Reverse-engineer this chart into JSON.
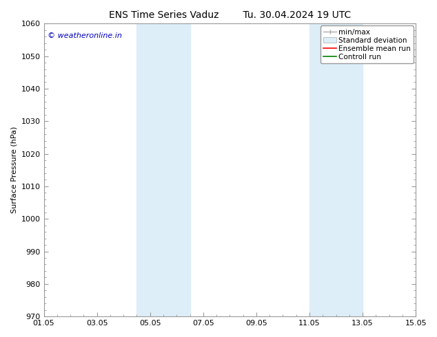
{
  "title_left": "ENS Time Series Vaduz",
  "title_right": "Tu. 30.04.2024 19 UTC",
  "ylabel": "Surface Pressure (hPa)",
  "ylim": [
    970,
    1060
  ],
  "yticks": [
    970,
    980,
    990,
    1000,
    1010,
    1020,
    1030,
    1040,
    1050,
    1060
  ],
  "xlabel_ticks": [
    "01.05",
    "03.05",
    "05.05",
    "07.05",
    "09.05",
    "11.05",
    "13.05",
    "15.05"
  ],
  "x_tick_positions": [
    0,
    2,
    4,
    6,
    8,
    10,
    12,
    14
  ],
  "xlim": [
    0,
    14
  ],
  "shaded_bands": [
    {
      "x_start": 3.5,
      "x_end": 5.5
    },
    {
      "x_start": 10.0,
      "x_end": 12.0
    }
  ],
  "shaded_color": "#ddeef8",
  "background_color": "#ffffff",
  "watermark_text": "© weatheronline.in",
  "watermark_color": "#0000bb",
  "watermark_fontsize": 8,
  "legend_labels": [
    "min/max",
    "Standard deviation",
    "Ensemble mean run",
    "Controll run"
  ],
  "legend_colors": [
    "#aaaaaa",
    "#ddeef8",
    "red",
    "green"
  ],
  "title_fontsize": 10,
  "axis_label_fontsize": 8,
  "tick_fontsize": 8,
  "legend_fontsize": 7.5,
  "grid_color": "#cccccc",
  "spine_color": "#999999",
  "fig_width": 6.34,
  "fig_height": 4.9,
  "dpi": 100
}
